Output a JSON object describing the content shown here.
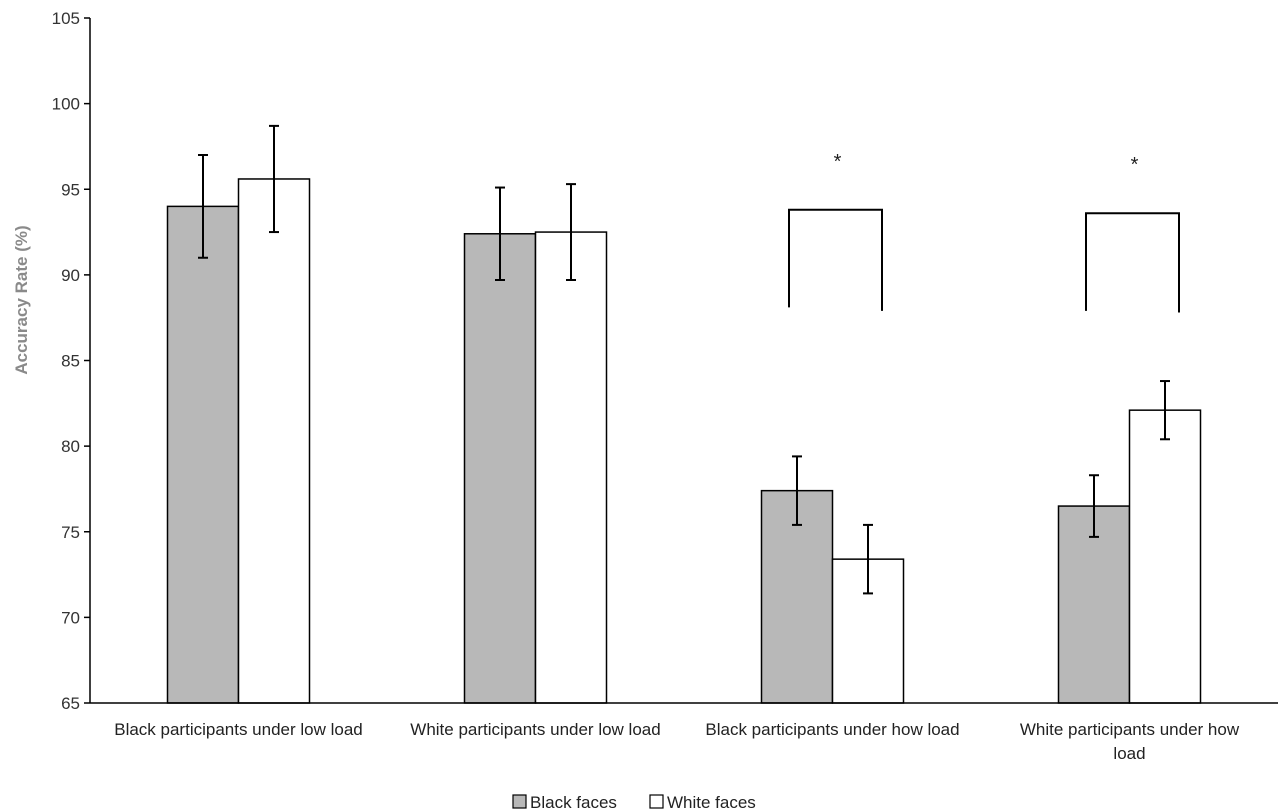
{
  "chart_data": {
    "type": "bar",
    "title": "",
    "xlabel": "",
    "ylabel": "Accuracy Rate (%)",
    "ylim": [
      65,
      105
    ],
    "yticks": [
      65,
      70,
      75,
      80,
      85,
      90,
      95,
      100,
      105
    ],
    "categories": [
      [
        "Black participants under low load"
      ],
      [
        "White participants under low load"
      ],
      [
        "Black participants under how load"
      ],
      [
        "White participants under how",
        "load"
      ]
    ],
    "series": [
      {
        "name": "Black faces",
        "color": "#b8b8b8",
        "values": [
          94.0,
          92.4,
          77.4,
          76.5
        ],
        "errors": [
          3.0,
          2.7,
          2.0,
          1.8
        ]
      },
      {
        "name": "White faces",
        "color": "#ffffff",
        "values": [
          95.6,
          92.5,
          73.4,
          82.1
        ],
        "errors": [
          3.1,
          2.8,
          2.0,
          1.7
        ]
      }
    ],
    "significance": [
      {
        "category_index": 2,
        "label": "*",
        "y": 93.8,
        "left_bottom": 88.1,
        "right_bottom": 87.9
      },
      {
        "category_index": 3,
        "label": "*",
        "y": 93.6,
        "left_bottom": 87.9,
        "right_bottom": 87.8
      }
    ],
    "legend": {
      "placement": "bottom-center",
      "entries": [
        "Black faces",
        "White faces"
      ]
    },
    "grid": false
  }
}
